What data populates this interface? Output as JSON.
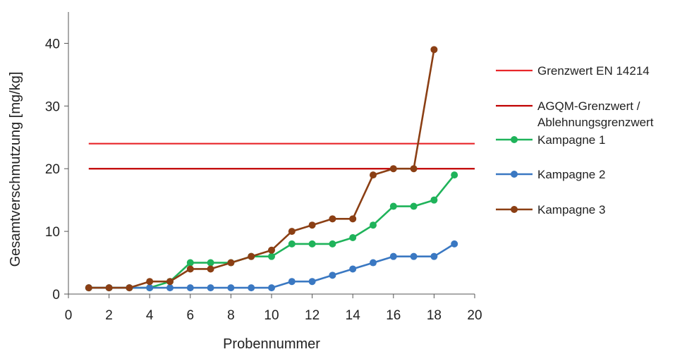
{
  "chart_data": {
    "type": "line",
    "xlabel": "Probennummer",
    "ylabel": "Gesamtverschmutzung [mg/kg]",
    "xlim": [
      0,
      20
    ],
    "ylim": [
      0,
      45
    ],
    "x_ticks": [
      0,
      2,
      4,
      6,
      8,
      10,
      12,
      14,
      16,
      18,
      20
    ],
    "y_ticks": [
      0,
      10,
      20,
      30,
      40
    ],
    "grid": false,
    "legend_position": "right",
    "reference_lines": [
      {
        "name": "Grenzwert EN 14214",
        "y": 24,
        "x_range": [
          1,
          20
        ],
        "color": "#e8262a"
      },
      {
        "name_lines": [
          "AGQM-Grenzwert /",
          "Ablehnungsgrenzwert"
        ],
        "y": 20,
        "x_range": [
          1,
          20
        ],
        "color": "#c00000"
      }
    ],
    "series": [
      {
        "name": "Kampagne 1",
        "color": "#1fb35a",
        "x": [
          1,
          2,
          3,
          4,
          5,
          6,
          7,
          8,
          9,
          10,
          11,
          12,
          13,
          14,
          15,
          16,
          17,
          18,
          19
        ],
        "y": [
          1,
          1,
          1,
          1,
          2,
          5,
          5,
          5,
          6,
          6,
          8,
          8,
          8,
          9,
          11,
          14,
          14,
          15,
          19
        ]
      },
      {
        "name": "Kampagne 2",
        "color": "#3a78c2",
        "x": [
          1,
          2,
          3,
          4,
          5,
          6,
          7,
          8,
          9,
          10,
          11,
          12,
          13,
          14,
          15,
          16,
          17,
          18,
          19
        ],
        "y": [
          1,
          1,
          1,
          1,
          1,
          1,
          1,
          1,
          1,
          1,
          2,
          2,
          3,
          4,
          5,
          6,
          6,
          6,
          8
        ]
      },
      {
        "name": "Kampagne 3",
        "color": "#8b3f14",
        "x": [
          1,
          2,
          3,
          4,
          5,
          6,
          7,
          8,
          9,
          10,
          11,
          12,
          13,
          14,
          15,
          16,
          17,
          18
        ],
        "y": [
          1,
          1,
          1,
          2,
          2,
          4,
          4,
          5,
          6,
          7,
          10,
          11,
          12,
          12,
          19,
          20,
          20,
          39
        ]
      }
    ]
  }
}
